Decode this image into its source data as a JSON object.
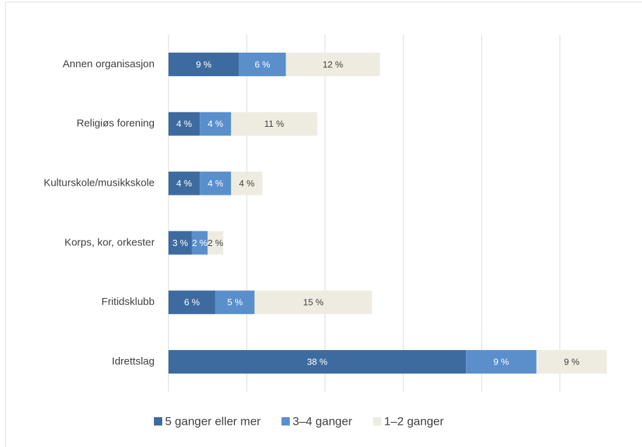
{
  "chart_data": {
    "type": "stacked_barh",
    "categories": [
      "Annen organisasjon",
      "Religiøs forening",
      "Kulturskole/musikkskole",
      "Korps, kor, orkester",
      "Fritidsklubb",
      "Idrettslag"
    ],
    "series": [
      {
        "name": "5 ganger eller mer",
        "color": "#3e6b9f",
        "values": [
          9,
          4,
          4,
          3,
          6,
          38
        ],
        "value_labels": [
          "9 %",
          "4 %",
          "4 %",
          "3 %",
          "6 %",
          "38 %"
        ]
      },
      {
        "name": "3–4 ganger",
        "color": "#5a8fcc",
        "values": [
          6,
          4,
          4,
          2,
          5,
          9
        ],
        "value_labels": [
          "6 %",
          "4 %",
          "4 %",
          "2 %",
          "5 %",
          "9 %"
        ]
      },
      {
        "name": "1–2 ganger",
        "color": "#eeece1",
        "values": [
          12,
          11,
          4,
          2,
          15,
          9
        ],
        "value_labels": [
          "12 %",
          "11 %",
          "4 %",
          "2 %",
          "15 %",
          "9 %"
        ]
      }
    ],
    "xlim": [
      0,
      58
    ],
    "xticks": [
      0,
      10,
      20,
      30,
      40,
      50
    ],
    "grid": true,
    "legend": "bottom"
  }
}
